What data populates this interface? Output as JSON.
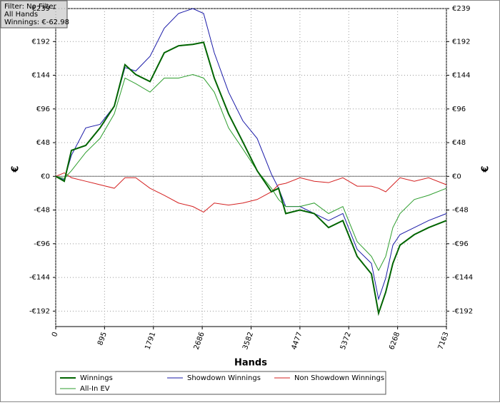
{
  "info_lines": [
    "Filter: No Filter",
    "All Hands",
    "Winnings: €-62.98"
  ],
  "chart_data": {
    "type": "line",
    "x_label": "Hands",
    "y_label": "€",
    "y2_label": "€",
    "x": [
      0,
      157,
      288,
      550,
      812,
      1074,
      1270,
      1467,
      1729,
      1990,
      2252,
      2514,
      2711,
      2907,
      3169,
      3431,
      3693,
      3955,
      4086,
      4217,
      4478,
      4740,
      5002,
      5264,
      5526,
      5788,
      5919,
      6050,
      6181,
      6312,
      6574,
      6836,
      7163
    ],
    "series": [
      {
        "name": "Winnings",
        "color": "#006400",
        "width": 2,
        "values": [
          0,
          -7,
          37,
          44,
          69,
          100,
          159,
          145,
          135,
          176,
          186,
          188,
          191,
          140,
          89,
          49,
          8,
          -22,
          -17,
          -53,
          -48,
          -53,
          -73,
          -63,
          -114,
          -139,
          -195,
          -165,
          -124,
          -98,
          -83,
          -73,
          -63
        ]
      },
      {
        "name": "Showdown Winnings",
        "color": "#1a1aa8",
        "width": 1,
        "values": [
          0,
          -5,
          30,
          69,
          74,
          100,
          155,
          150,
          171,
          211,
          232,
          239,
          232,
          176,
          120,
          79,
          54,
          3,
          -17,
          -43,
          -43,
          -53,
          -63,
          -53,
          -104,
          -124,
          -175,
          -145,
          -98,
          -83,
          -73,
          -63,
          -53
        ]
      },
      {
        "name": "Non Showdown Winnings",
        "color": "#d42020",
        "width": 1,
        "values": [
          0,
          5,
          -2,
          -7,
          -12,
          -17,
          -2,
          -2,
          -17,
          -27,
          -38,
          -43,
          -51,
          -38,
          -41,
          -38,
          -33,
          -22,
          -12,
          -10,
          -2,
          -7,
          -9,
          -2,
          -14,
          -14,
          -17,
          -22,
          -12,
          -2,
          -7,
          -2,
          -12
        ]
      },
      {
        "name": "All-In EV",
        "color": "#2e9e2e",
        "width": 1,
        "values": [
          0,
          -3,
          8,
          34,
          54,
          89,
          140,
          132,
          120,
          140,
          140,
          145,
          140,
          120,
          69,
          39,
          8,
          -17,
          -33,
          -43,
          -43,
          -38,
          -53,
          -43,
          -93,
          -114,
          -134,
          -114,
          -73,
          -53,
          -33,
          -27,
          -17
        ]
      }
    ],
    "xlim": [
      0,
      7163
    ],
    "xticks": [
      0,
      895,
      1791,
      2686,
      3582,
      4477,
      5372,
      6268,
      7163
    ],
    "ylim": [
      -214,
      239
    ],
    "yticks": [
      {
        "value": -192,
        "label": "-€192"
      },
      {
        "value": -144,
        "label": "-€144"
      },
      {
        "value": -96,
        "label": "-€96"
      },
      {
        "value": -48,
        "label": "-€48"
      },
      {
        "value": 0,
        "label": "€0"
      },
      {
        "value": 48,
        "label": "€48"
      },
      {
        "value": 96,
        "label": "€96"
      },
      {
        "value": 144,
        "label": "€144"
      },
      {
        "value": 192,
        "label": "€192"
      },
      {
        "value": 239,
        "label": "€239"
      }
    ],
    "grid": true
  }
}
